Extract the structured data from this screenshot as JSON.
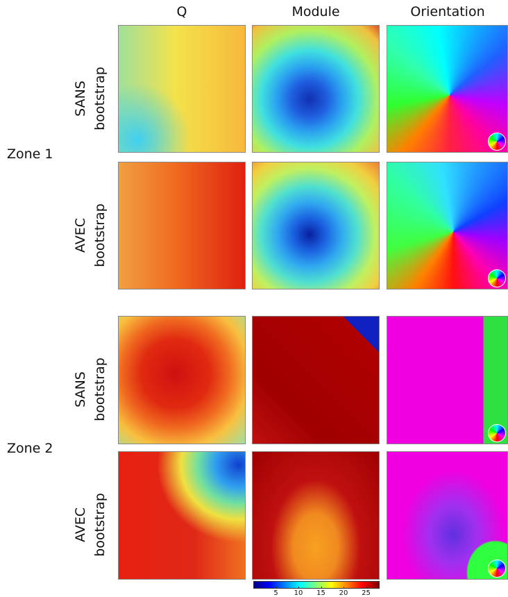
{
  "columns": [
    "Q",
    "Module",
    "Orientation"
  ],
  "zones": [
    {
      "label": "Zone 1",
      "rows": [
        {
          "lines": [
            "SANS",
            "bootstrap"
          ]
        },
        {
          "lines": [
            "AVEC",
            "bootstrap"
          ]
        }
      ]
    },
    {
      "label": "Zone 2",
      "rows": [
        {
          "lines": [
            "SANS",
            "bootstrap"
          ]
        },
        {
          "lines": [
            "AVEC",
            "bootstrap"
          ]
        }
      ]
    }
  ],
  "colorbar": {
    "lim": [
      0,
      28
    ],
    "ticks": [
      5,
      10,
      15,
      20,
      25
    ]
  }
}
